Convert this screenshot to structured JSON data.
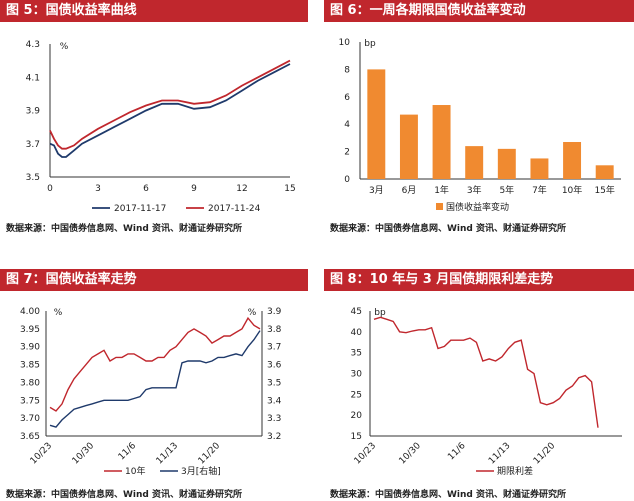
{
  "panels": [
    {
      "title": "图 5：国债收益率曲线",
      "source": "数据来源：中国债券信息网、Wind 资讯、财通证券研究所"
    },
    {
      "title": "图 6：一周各期限国债收益率变动",
      "source": "数据来源：中国债券信息网、Wind 资讯、财通证券研究所"
    },
    {
      "title": "图 7：国债收益率走势",
      "source": "数据来源：中国债券信息网、Wind 资讯、财通证券研究所"
    },
    {
      "title": "图 8：10 年与 3 月国债期限利差走势",
      "source": "数据来源：中国债券信息网、Wind 资讯、财通证券研究所"
    }
  ],
  "colors": {
    "header": "#c0272d",
    "navy": "#1f3a6b",
    "red": "#c0272d",
    "orange": "#f08a30"
  },
  "chart_data": [
    {
      "type": "line",
      "ylabel": "%",
      "ylim": [
        3.5,
        4.3
      ],
      "yticks": [
        "3.5",
        "3.7",
        "3.9",
        "4.1",
        "4.3"
      ],
      "xlim": [
        0,
        15
      ],
      "xticks": [
        "0",
        "3",
        "6",
        "9",
        "12",
        "15"
      ],
      "legend_position": "bottom",
      "series": [
        {
          "name": "2017-11-17",
          "color": "#1f3a6b",
          "x": [
            0,
            0.25,
            0.5,
            0.75,
            1,
            1.5,
            2,
            3,
            4,
            5,
            6,
            7,
            8,
            9,
            10,
            11,
            12,
            13,
            14,
            15
          ],
          "y": [
            3.7,
            3.69,
            3.64,
            3.62,
            3.62,
            3.66,
            3.7,
            3.75,
            3.8,
            3.85,
            3.9,
            3.94,
            3.94,
            3.91,
            3.92,
            3.96,
            4.02,
            4.08,
            4.13,
            4.18
          ]
        },
        {
          "name": "2017-11-24",
          "color": "#c0272d",
          "x": [
            0,
            0.25,
            0.5,
            0.75,
            1,
            1.5,
            2,
            3,
            4,
            5,
            6,
            7,
            8,
            9,
            10,
            11,
            12,
            13,
            14,
            15
          ],
          "y": [
            3.78,
            3.73,
            3.69,
            3.67,
            3.67,
            3.69,
            3.73,
            3.79,
            3.84,
            3.89,
            3.93,
            3.96,
            3.96,
            3.94,
            3.95,
            3.99,
            4.05,
            4.1,
            4.15,
            4.2
          ]
        }
      ]
    },
    {
      "type": "bar",
      "ylabel": "bp",
      "ylim": [
        0,
        10
      ],
      "yticks": [
        "0",
        "2",
        "4",
        "6",
        "8",
        "10"
      ],
      "categories": [
        "3月",
        "6月",
        "1年",
        "3年",
        "5年",
        "7年",
        "10年",
        "15年"
      ],
      "legend_position": "bottom",
      "series": [
        {
          "name": "国债收益率变动",
          "color": "#f08a30",
          "values": [
            8.0,
            4.7,
            5.4,
            2.4,
            2.2,
            1.5,
            2.7,
            1.0
          ]
        }
      ]
    },
    {
      "type": "line",
      "ylabel": "%",
      "ylim": [
        3.65,
        4.0
      ],
      "yticks": [
        "3.65",
        "3.70",
        "3.75",
        "3.80",
        "3.85",
        "3.90",
        "3.95",
        "4.00"
      ],
      "y2label": "%",
      "y2lim": [
        3.2,
        3.9
      ],
      "y2ticks": [
        "3.2",
        "3.3",
        "3.4",
        "3.5",
        "3.6",
        "3.7",
        "3.8",
        "3.9"
      ],
      "xticks": [
        "10/23",
        "10/30",
        "11/6",
        "11/13",
        "11/20"
      ],
      "legend_position": "bottom",
      "series": [
        {
          "name": "10年",
          "color": "#c0272d",
          "axis": "left",
          "y": [
            3.73,
            3.72,
            3.74,
            3.78,
            3.81,
            3.83,
            3.85,
            3.87,
            3.88,
            3.89,
            3.86,
            3.87,
            3.87,
            3.88,
            3.88,
            3.87,
            3.86,
            3.86,
            3.87,
            3.87,
            3.89,
            3.9,
            3.92,
            3.94,
            3.95,
            3.94,
            3.93,
            3.91,
            3.92,
            3.93,
            3.93,
            3.94,
            3.95,
            3.98,
            3.96,
            3.95
          ]
        },
        {
          "name": "3月[右轴]",
          "color": "#1f3a6b",
          "axis": "right",
          "y": [
            3.26,
            3.25,
            3.29,
            3.32,
            3.35,
            3.36,
            3.37,
            3.38,
            3.39,
            3.4,
            3.4,
            3.4,
            3.4,
            3.4,
            3.41,
            3.42,
            3.46,
            3.47,
            3.47,
            3.47,
            3.47,
            3.47,
            3.61,
            3.62,
            3.62,
            3.62,
            3.61,
            3.62,
            3.64,
            3.64,
            3.65,
            3.66,
            3.65,
            3.7,
            3.74,
            3.79
          ]
        }
      ]
    },
    {
      "type": "line",
      "ylabel": "bp",
      "ylim": [
        15,
        45
      ],
      "yticks": [
        "15",
        "20",
        "25",
        "30",
        "35",
        "40",
        "45"
      ],
      "xticks": [
        "10/23",
        "10/30",
        "11/6",
        "11/13",
        "11/20"
      ],
      "legend_position": "bottom",
      "series": [
        {
          "name": "期限利差",
          "color": "#c0272d",
          "y": [
            43.0,
            43.5,
            43.0,
            42.5,
            40.0,
            39.8,
            40.2,
            40.5,
            40.5,
            41.0,
            36.0,
            36.5,
            38.0,
            38.0,
            38.0,
            38.5,
            37.5,
            33.0,
            33.5,
            33.0,
            34.0,
            36.0,
            37.5,
            38.0,
            31.0,
            30.0,
            23.0,
            22.5,
            23.0,
            24.0,
            26.0,
            27.0,
            29.0,
            29.5,
            28.0,
            17.0
          ]
        }
      ]
    }
  ]
}
